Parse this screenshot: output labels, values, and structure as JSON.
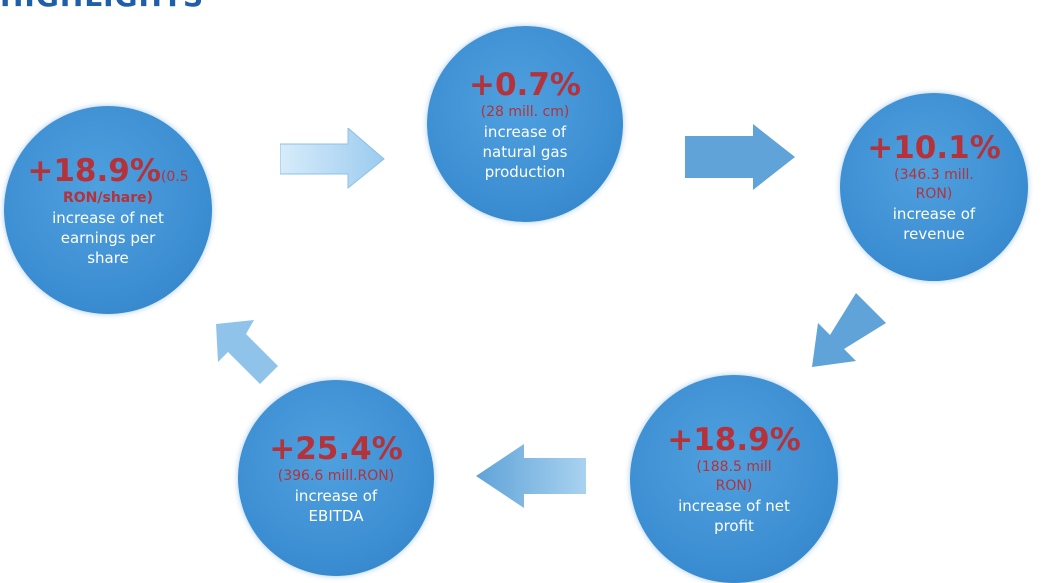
{
  "heading": "HIGHLIGHTS",
  "colors": {
    "circle": "#3d8fd3",
    "accent": "#b5323a",
    "arrow": "#5fa3d8",
    "arrow_light": "#a9d2f0",
    "heading": "#1f5fa8"
  },
  "nodes": {
    "gas": {
      "pct": "+0.7%",
      "detail": "(28 mill. cm)",
      "desc": [
        "increase of",
        "natural gas",
        "production"
      ]
    },
    "revenue": {
      "pct": "+10.1%",
      "detail": [
        "(346.3 mill.",
        "RON)"
      ],
      "desc": [
        "increase of",
        "revenue"
      ]
    },
    "profit": {
      "pct": "+18.9%",
      "detail": [
        "(188.5 mill",
        "RON)"
      ],
      "desc": [
        "increase of net",
        "profit"
      ]
    },
    "ebitda": {
      "pct": "+25.4%",
      "detail": "(396.6 mill.RON)",
      "desc": [
        "increase of",
        "EBITDA"
      ]
    },
    "eps": {
      "pct": "+18.9%",
      "detail_inline": "(0.5",
      "detail": "RON/share)",
      "desc": [
        "increase of net",
        "earnings per",
        "share"
      ]
    }
  }
}
